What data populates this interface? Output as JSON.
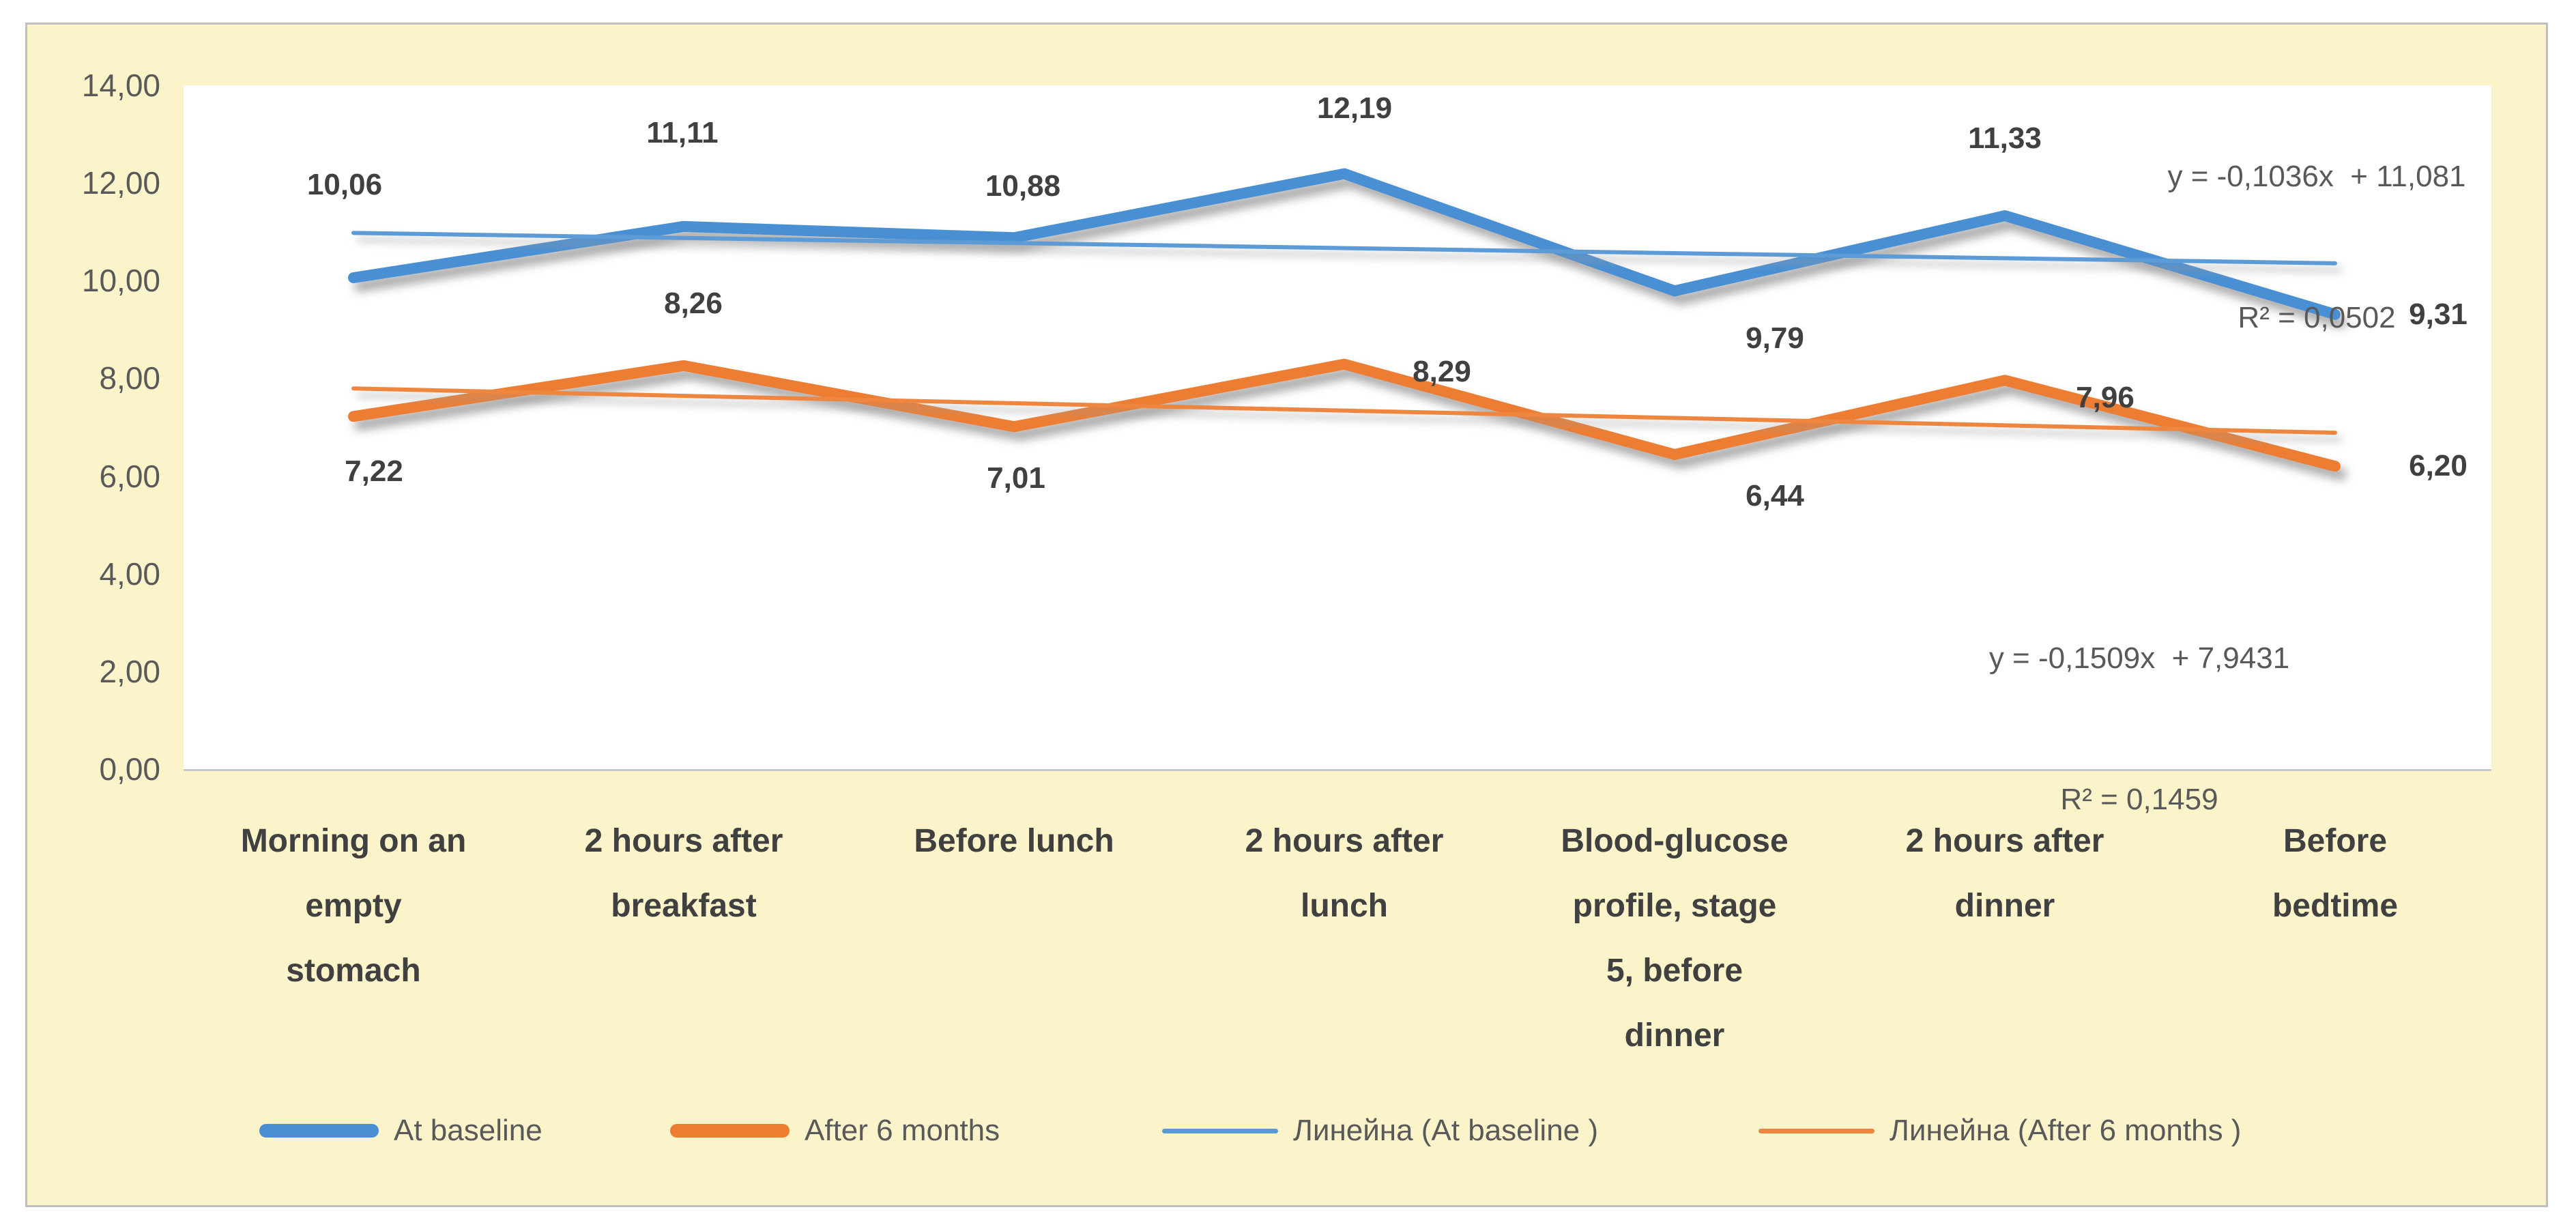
{
  "chart_data": {
    "type": "line",
    "title": "",
    "xlabel": "",
    "ylabel": "",
    "grid": false,
    "legend_position": "bottom",
    "background_color": "#FBF3C9",
    "plot_background_color": "#FFFFFF",
    "categories": [
      "Morning on an\nempty\nstomach",
      "2 hours after\nbreakfast",
      "Before lunch",
      "2 hours after\nlunch",
      "Blood-glucose\nprofile, stage\n5, before\ndinner",
      "2 hours after\ndinner",
      "Before\nbedtime"
    ],
    "series": [
      {
        "name": "At baseline",
        "color": "#4A8FD3",
        "values": [
          10.06,
          11.11,
          10.88,
          12.19,
          9.79,
          11.33,
          9.31
        ],
        "labels": [
          "10,06",
          "11,11",
          "10,88",
          "12,19",
          "9,79",
          "11,33",
          "9,31"
        ]
      },
      {
        "name": "After 6 months",
        "color": "#ED7D31",
        "values": [
          7.22,
          8.26,
          7.01,
          8.29,
          6.44,
          7.96,
          6.2
        ],
        "labels": [
          "7,22",
          "8,26",
          "7,01",
          "8,29",
          "6,44",
          "7,96",
          "6,20"
        ]
      }
    ],
    "trendlines": [
      {
        "name": "Линейна (At baseline )",
        "color": "#5B9BD5",
        "slope": -0.1036,
        "intercept": 11.081,
        "equation": "y = -0,1036x  + 11,081",
        "r_squared": "R² = 0,0502"
      },
      {
        "name": "Линейна (After 6 months )",
        "color": "#EF8640",
        "slope": -0.1509,
        "intercept": 7.9431,
        "equation": "y = -0,1509x  + 7,9431",
        "r_squared": "R² = 0,1459"
      }
    ],
    "y_axis": {
      "min": 0,
      "max": 14,
      "step": 2,
      "tick_labels": [
        "0,00",
        "2,00",
        "4,00",
        "6,00",
        "8,00",
        "10,00",
        "12,00",
        "14,00"
      ]
    },
    "legend": [
      {
        "label": "At baseline",
        "color": "#4A8FD3",
        "style": "thick"
      },
      {
        "label": "After 6 months",
        "color": "#ED7D31",
        "style": "thick"
      },
      {
        "label": "Линейна (At baseline )",
        "color": "#5B9BD5",
        "style": "thin"
      },
      {
        "label": "Линейна (After 6 months )",
        "color": "#EF8640",
        "style": "thin"
      }
    ]
  }
}
